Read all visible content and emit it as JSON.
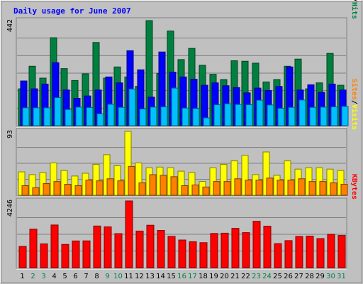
{
  "chart_data": {
    "type": "bar",
    "title": "Daily usage for June 2007",
    "days": [
      "1",
      "2",
      "3",
      "4",
      "5",
      "6",
      "7",
      "8",
      "9",
      "10",
      "11",
      "12",
      "13",
      "14",
      "15",
      "16",
      "17",
      "18",
      "19",
      "20",
      "21",
      "22",
      "23",
      "24",
      "25",
      "26",
      "27",
      "28",
      "29",
      "30",
      "31"
    ],
    "weekend_days": [
      2,
      3,
      9,
      10,
      16,
      17,
      23,
      24,
      30,
      31
    ],
    "panels": [
      {
        "id": "top",
        "max_label": "442",
        "ymax": 442,
        "right_label": [
          {
            "text": "Pages",
            "color": "#00C0FF"
          },
          {
            "text": "/",
            "color": "#000000"
          },
          {
            "text": "Files",
            "color": "#0000FF"
          },
          {
            "text": "/",
            "color": "#000000"
          },
          {
            "text": "Hits",
            "color": "#008040"
          }
        ],
        "series": [
          {
            "name": "Hits",
            "color": "#008040",
            "values": [
              155,
              250,
              200,
              370,
              240,
              190,
              218,
              350,
              200,
              247,
              205,
              165,
              442,
              220,
              398,
              278,
              325,
              254,
              216,
              194,
              273,
              271,
              263,
              184,
              194,
              250,
              280,
              155,
              180,
              304,
              170
            ]
          },
          {
            "name": "Files",
            "color": "#0000FF",
            "values": [
              188,
              155,
              175,
              265,
              150,
              115,
              125,
              150,
              205,
              180,
              315,
              235,
              120,
              310,
              225,
              205,
              195,
              170,
              180,
              168,
              160,
              138,
              158,
              148,
              165,
              247,
              150,
              172,
              140,
              175,
              150
            ]
          },
          {
            "name": "Pages",
            "color": "#00C0FF",
            "values": [
              75,
              75,
              75,
              118,
              68,
              78,
              76,
              50,
              90,
              77,
              154,
              70,
              78,
              79,
              158,
              74,
              72,
              33,
              88,
              92,
              89,
              88,
              107,
              87,
              73,
              77,
              108,
              77,
              78,
              79,
              81
            ]
          }
        ]
      },
      {
        "id": "mid",
        "max_label": "93",
        "ymax": 93,
        "right_label": [
          {
            "text": "Sites",
            "color": "#FF8000"
          },
          {
            "text": "/",
            "color": "#000000"
          },
          {
            "text": "Visits",
            "color": "#FFFF00"
          }
        ],
        "series": [
          {
            "name": "Visits",
            "color": "#FFFF00",
            "values": [
              34,
              30,
              33,
              47,
              36,
              28,
              32,
              45,
              59,
              43,
              93,
              47,
              40,
              41,
              40,
              35,
              33,
              20,
              40,
              45,
              50,
              58,
              30,
              63,
              29,
              50,
              38,
              40,
              40,
              38,
              36
            ]
          },
          {
            "name": "Sites",
            "color": "#FF8000",
            "values": [
              14,
              11,
              17,
              20,
              16,
              14,
              22,
              21,
              24,
              21,
              42,
              18,
              30,
              29,
              27,
              14,
              15,
              12,
              20,
              20,
              24,
              22,
              22,
              25,
              22,
              22,
              24,
              20,
              20,
              18,
              16
            ]
          }
        ]
      },
      {
        "id": "bot",
        "max_label": "4246",
        "ymax": 4246,
        "right_label": [
          {
            "text": "KBytes",
            "color": "#FF0000"
          }
        ],
        "series": [
          {
            "name": "KBytes",
            "color": "#FF0000",
            "values": [
              1350,
              2450,
              1515,
              2715,
              1479,
              1700,
              1705,
              2651,
              2597,
              2165,
              4246,
              2330,
              2700,
              2370,
              1990,
              1760,
              1650,
              1590,
              2175,
              2195,
              2500,
              2230,
              2950,
              2640,
              1530,
              1720,
              1985,
              2010,
              1850,
              2120,
              2050
            ]
          }
        ]
      }
    ]
  }
}
